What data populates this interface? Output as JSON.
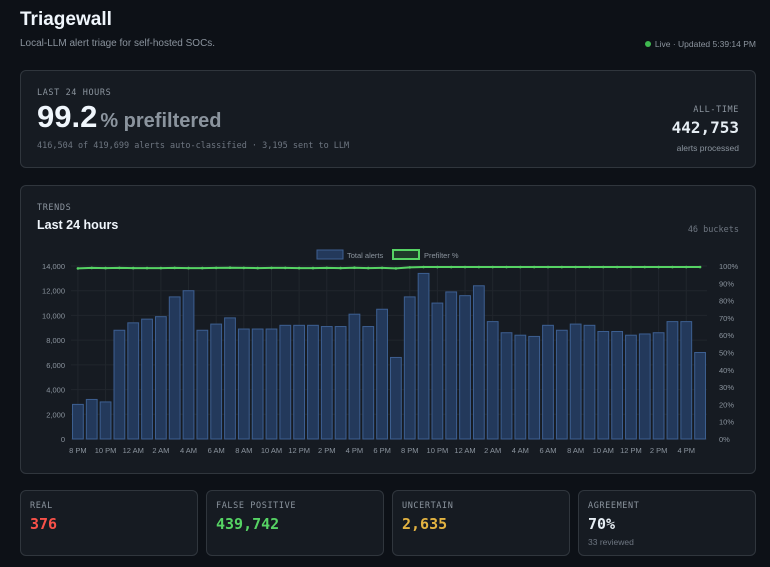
{
  "header": {
    "title": "Triagewall",
    "subtitle": "Local-LLM alert triage for self-hosted SOCs.",
    "status": "Live · Updated 5:39:14 PM"
  },
  "summary": {
    "kicker": "LAST 24 HOURS",
    "percent": "99.2",
    "percent_unit": "% prefiltered",
    "detail": "416,504 of 419,699 alerts auto-classified · 3,195 sent to LLM",
    "alltime_label": "ALL-TIME",
    "alltime_value": "442,753",
    "alltime_sub": "alerts processed"
  },
  "trends": {
    "kicker": "TRENDS",
    "title": "Last 24 hours",
    "buckets": "46 buckets"
  },
  "stats": [
    {
      "label": "REAL",
      "value": "376",
      "color": "#f85149",
      "sub": ""
    },
    {
      "label": "FALSE POSITIVE",
      "value": "439,742",
      "color": "#56d364",
      "sub": ""
    },
    {
      "label": "UNCERTAIN",
      "value": "2,635",
      "color": "#e3b341",
      "sub": ""
    },
    {
      "label": "AGREEMENT",
      "value": "70%",
      "color": "#e6edf3",
      "sub": "33 reviewed"
    }
  ],
  "colors": {
    "bar_fill": "#23395b",
    "bar_stroke": "#3d5f91",
    "line": "#56d364",
    "grid": "#21262d",
    "tick": "#8b949e"
  },
  "chart_data": {
    "type": "bar",
    "legend_position": "top-center",
    "grid": true,
    "x_tick_labels": [
      "8 PM",
      "10 PM",
      "12 AM",
      "2 AM",
      "4 AM",
      "6 AM",
      "8 AM",
      "10 AM",
      "12 PM",
      "2 PM",
      "4 PM",
      "6 PM",
      "8 PM",
      "10 PM",
      "12 AM",
      "2 AM",
      "4 AM",
      "6 AM",
      "8 AM",
      "10 AM",
      "12 PM",
      "2 PM",
      "4 PM"
    ],
    "y_left_ticks": [
      "0",
      "2,000",
      "4,000",
      "6,000",
      "8,000",
      "10,000",
      "12,000",
      "14,000"
    ],
    "y_right_ticks": [
      "0%",
      "10%",
      "20%",
      "30%",
      "40%",
      "50%",
      "60%",
      "70%",
      "80%",
      "90%",
      "100%"
    ],
    "ylim_left": [
      0,
      14000
    ],
    "ylim_right": [
      0,
      100
    ],
    "series": [
      {
        "name": "Total alerts",
        "type": "bar",
        "values": [
          2800,
          3200,
          3000,
          8800,
          9400,
          9700,
          9900,
          11500,
          12000,
          8800,
          9300,
          9800,
          8900,
          8900,
          8900,
          9200,
          9200,
          9200,
          9100,
          9100,
          10100,
          9100,
          10500,
          6600,
          11500,
          13400,
          11000,
          11900,
          11600,
          12400,
          9500,
          8600,
          8400,
          8300,
          9200,
          8800,
          9300,
          9200,
          8700,
          8700,
          8400,
          8500,
          8600,
          9500,
          9500,
          7000
        ]
      },
      {
        "name": "Prefilter %",
        "type": "line",
        "axis": "right",
        "values": [
          98.6,
          98.9,
          98.8,
          98.9,
          98.8,
          98.8,
          98.8,
          98.9,
          98.8,
          98.8,
          98.9,
          99.0,
          98.9,
          98.8,
          98.9,
          98.9,
          98.8,
          98.8,
          98.9,
          98.8,
          99.0,
          98.8,
          98.9,
          98.6,
          99.2,
          99.4,
          99.4,
          99.4,
          99.4,
          99.4,
          99.4,
          99.4,
          99.4,
          99.4,
          99.4,
          99.4,
          99.4,
          99.4,
          99.4,
          99.4,
          99.4,
          99.4,
          99.4,
          99.4,
          99.4,
          99.4
        ]
      }
    ]
  }
}
